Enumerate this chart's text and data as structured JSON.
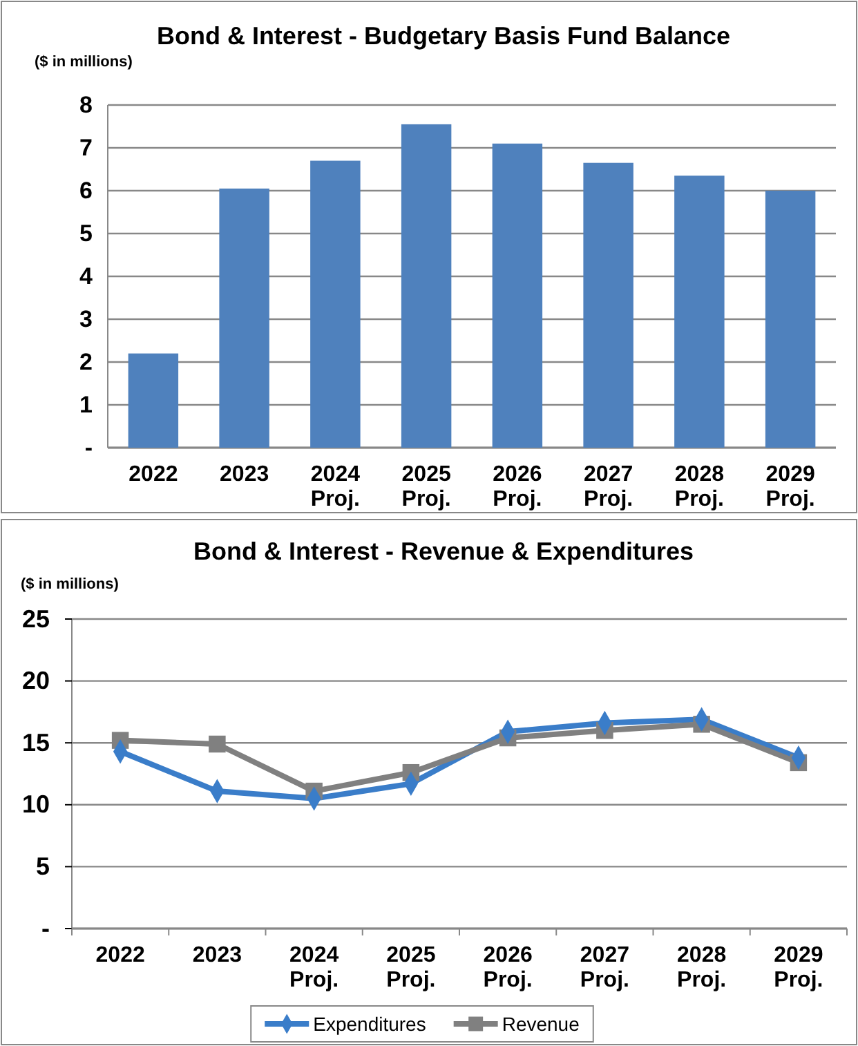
{
  "chart_data": [
    {
      "type": "bar",
      "title": "Bond & Interest - Budgetary Basis Fund Balance",
      "ylabel": "($ in millions)",
      "categories": [
        "2022",
        "2023",
        "2024 Proj.",
        "2025 Proj.",
        "2026 Proj.",
        "2027 Proj.",
        "2028 Proj.",
        "2029 Proj."
      ],
      "series": [
        {
          "color": "#4f81bd",
          "values": [
            2.2,
            6.05,
            6.7,
            7.55,
            7.1,
            6.65,
            6.35,
            6.0
          ]
        }
      ],
      "ylim": [
        0,
        8
      ],
      "yticks": [
        {
          "value": 0,
          "label": "-"
        },
        1,
        2,
        3,
        4,
        5,
        6,
        7,
        8
      ],
      "grid": "y",
      "legend": false
    },
    {
      "type": "line",
      "title": "Bond & Interest - Revenue & Expenditures",
      "ylabel": "($ in millions)",
      "categories": [
        "2022",
        "2023",
        "2024 Proj.",
        "2025 Proj.",
        "2026 Proj.",
        "2027 Proj.",
        "2028 Proj.",
        "2029 Proj."
      ],
      "series": [
        {
          "name": "Expenditures",
          "color": "#3a7dc9",
          "marker": "diamond",
          "values": [
            14.3,
            11.1,
            10.5,
            11.7,
            15.9,
            16.6,
            16.9,
            13.8
          ]
        },
        {
          "name": "Revenue",
          "color": "#808080",
          "marker": "square",
          "values": [
            15.2,
            14.9,
            11.1,
            12.6,
            15.4,
            16.0,
            16.5,
            13.4
          ]
        }
      ],
      "ylim": [
        0,
        25
      ],
      "yticks": [
        {
          "value": 0,
          "label": "-"
        },
        5,
        10,
        15,
        20,
        25
      ],
      "grid": "y",
      "legend": "bottom"
    }
  ]
}
